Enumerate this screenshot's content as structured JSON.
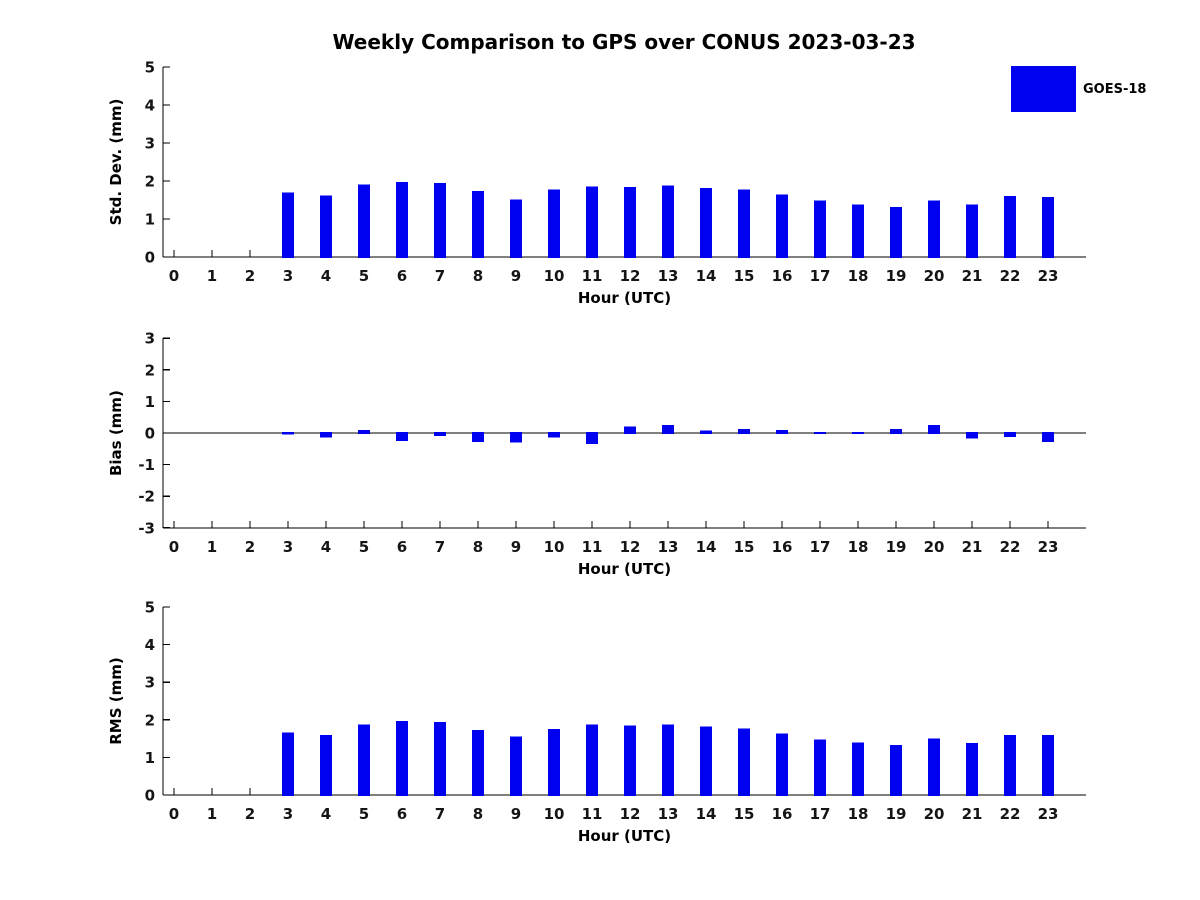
{
  "title": "Weekly Comparison to GPS over CONUS 2023-03-23",
  "legend": {
    "label": "GOES-18",
    "color": "#0000f0"
  },
  "axis_color": "#000000",
  "chart_data": [
    {
      "type": "bar",
      "name": "std-dev",
      "ylabel": "Std. Dev. (mm)",
      "xlabel": "Hour (UTC)",
      "ylim": [
        0,
        5
      ],
      "yticks": [
        0,
        1,
        2,
        3,
        4,
        5
      ],
      "grid": false,
      "legend_position": "outside-top-right",
      "categories": [
        0,
        1,
        2,
        3,
        4,
        5,
        6,
        7,
        8,
        9,
        10,
        11,
        12,
        13,
        14,
        15,
        16,
        17,
        18,
        19,
        20,
        21,
        22,
        23
      ],
      "series": [
        {
          "name": "GOES-18",
          "values": [
            null,
            null,
            null,
            1.7,
            1.62,
            1.91,
            1.98,
            1.95,
            1.74,
            1.51,
            1.77,
            1.86,
            1.84,
            1.88,
            1.82,
            1.77,
            1.64,
            1.49,
            1.38,
            1.32,
            1.49,
            1.38,
            1.61,
            1.58
          ]
        }
      ]
    },
    {
      "type": "bar",
      "name": "bias",
      "ylabel": "Bias (mm)",
      "xlabel": "Hour (UTC)",
      "ylim": [
        -3,
        3
      ],
      "yticks": [
        -3,
        -2,
        -1,
        0,
        1,
        2,
        3
      ],
      "grid": false,
      "zero_line": true,
      "categories": [
        0,
        1,
        2,
        3,
        4,
        5,
        6,
        7,
        8,
        9,
        10,
        11,
        12,
        13,
        14,
        15,
        16,
        17,
        18,
        19,
        20,
        21,
        22,
        23
      ],
      "series": [
        {
          "name": "GOES-18",
          "values": [
            null,
            null,
            null,
            -0.05,
            -0.15,
            0.1,
            -0.25,
            -0.1,
            -0.28,
            -0.3,
            -0.15,
            -0.35,
            0.2,
            0.25,
            0.08,
            0.13,
            0.1,
            -0.03,
            -0.03,
            0.12,
            0.25,
            -0.18,
            -0.12,
            -0.28
          ]
        }
      ]
    },
    {
      "type": "bar",
      "name": "rms",
      "ylabel": "RMS (mm)",
      "xlabel": "Hour (UTC)",
      "ylim": [
        0,
        5
      ],
      "yticks": [
        0,
        1,
        2,
        3,
        4,
        5
      ],
      "grid": false,
      "categories": [
        0,
        1,
        2,
        3,
        4,
        5,
        6,
        7,
        8,
        9,
        10,
        11,
        12,
        13,
        14,
        15,
        16,
        17,
        18,
        19,
        20,
        21,
        22,
        23
      ],
      "series": [
        {
          "name": "GOES-18",
          "values": [
            null,
            null,
            null,
            1.66,
            1.6,
            1.87,
            1.97,
            1.94,
            1.73,
            1.55,
            1.76,
            1.87,
            1.85,
            1.88,
            1.82,
            1.77,
            1.63,
            1.48,
            1.39,
            1.33,
            1.5,
            1.38,
            1.59,
            1.59
          ]
        }
      ]
    }
  ]
}
